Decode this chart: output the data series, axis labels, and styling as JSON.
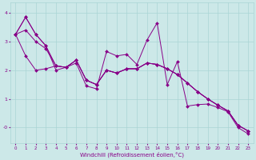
{
  "xlabel": "Windchill (Refroidissement éolien,°C)",
  "background_color": "#cce8e8",
  "line_color": "#880088",
  "grid_color": "#aad4d4",
  "xlim": [
    -0.5,
    23.5
  ],
  "ylim": [
    -0.55,
    4.35
  ],
  "xticks": [
    0,
    1,
    2,
    3,
    4,
    5,
    6,
    7,
    8,
    9,
    10,
    11,
    12,
    13,
    14,
    15,
    16,
    17,
    18,
    19,
    20,
    21,
    22,
    23
  ],
  "yticks": [
    0,
    1,
    2,
    3,
    4
  ],
  "ytick_labels": [
    "-0",
    "1",
    "2",
    "3",
    "4"
  ],
  "series": [
    [
      3.25,
      3.85,
      3.25,
      2.85,
      2.0,
      2.1,
      2.25,
      1.45,
      1.35,
      2.65,
      2.5,
      2.55,
      2.2,
      3.05,
      3.65,
      1.5,
      2.3,
      0.75,
      0.8,
      0.82,
      0.7,
      0.55,
      0.0,
      -0.22
    ],
    [
      3.25,
      3.85,
      3.25,
      2.85,
      2.15,
      2.1,
      2.35,
      1.65,
      1.5,
      2.0,
      1.9,
      2.05,
      2.05,
      2.25,
      2.2,
      2.05,
      1.85,
      1.55,
      1.25,
      1.0,
      0.78,
      0.58,
      0.08,
      -0.12
    ],
    [
      3.25,
      3.4,
      3.0,
      2.75,
      2.15,
      2.1,
      2.35,
      1.65,
      1.5,
      2.0,
      1.9,
      2.05,
      2.05,
      2.25,
      2.2,
      2.05,
      1.85,
      1.55,
      1.25,
      1.0,
      0.78,
      0.58,
      0.08,
      -0.12
    ],
    [
      3.25,
      2.5,
      2.0,
      2.05,
      2.15,
      2.1,
      2.35,
      1.65,
      1.5,
      2.0,
      1.9,
      2.05,
      2.05,
      2.25,
      2.2,
      2.05,
      1.85,
      1.55,
      1.25,
      1.0,
      0.78,
      0.58,
      0.08,
      -0.12
    ]
  ]
}
